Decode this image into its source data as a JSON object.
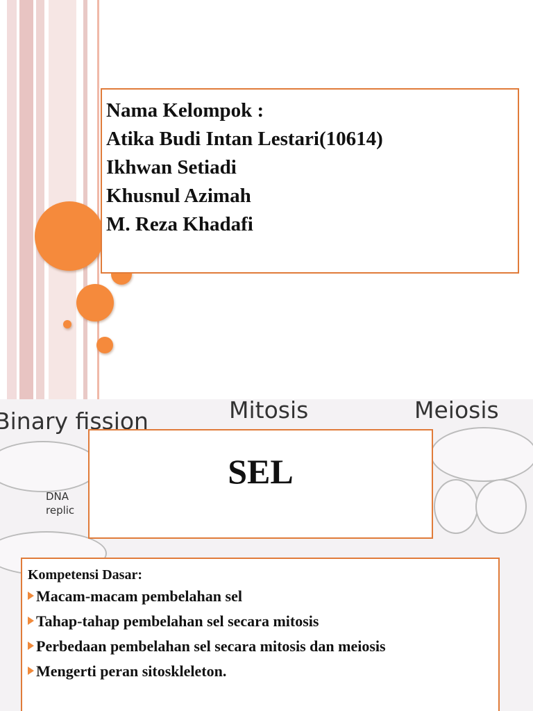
{
  "slide1": {
    "title": "Nama Kelompok :",
    "members": [
      "Atika Budi Intan Lestari(10614)",
      "Ikhwan Setiadi",
      "Khusnul Azimah",
      "M. Reza Khadafi"
    ]
  },
  "slide2": {
    "background_labels": [
      "Binary fission",
      "Mitosis",
      "Meiosis",
      "DNA",
      "replic"
    ],
    "title": "SEL",
    "competency": {
      "heading": "Kompetensi Dasar:",
      "items": [
        "Macam-macam pembelahan sel",
        "Tahap-tahap pembelahan sel secara mitosis",
        "Perbedaan pembelahan sel secara mitosis dan meiosis",
        "Mengerti peran sitoskleleton."
      ]
    }
  }
}
